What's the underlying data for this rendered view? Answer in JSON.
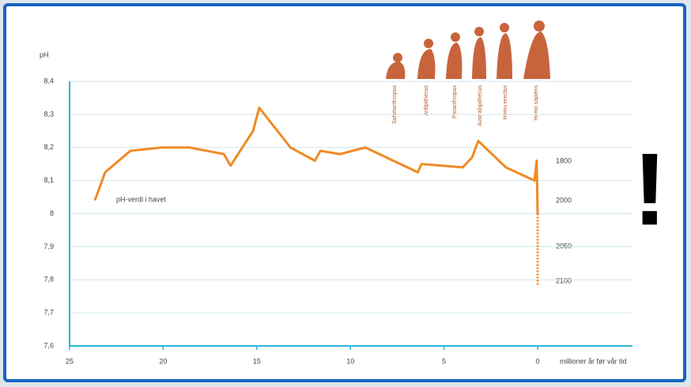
{
  "chart_data": {
    "type": "line",
    "y_label": "pH",
    "x_label": "millioner år før vår tid",
    "xlim": [
      25,
      0
    ],
    "ylim": [
      7.6,
      8.4
    ],
    "xticks": [
      25,
      20,
      15,
      10,
      5,
      0
    ],
    "yticks": [
      {
        "value": 7.6,
        "label": "7,6"
      },
      {
        "value": 7.7,
        "label": "7,7"
      },
      {
        "value": 7.8,
        "label": "7,8"
      },
      {
        "value": 7.9,
        "label": "7,9"
      },
      8,
      {
        "value": 8.1,
        "label": "8,1"
      },
      {
        "value": 8.2,
        "label": "8,2"
      },
      {
        "value": 8.3,
        "label": "8,3"
      },
      {
        "value": 8.4,
        "label": "8,4"
      }
    ],
    "grid": true,
    "series": [
      {
        "name": "pH-verdi i havet",
        "color": "#f08a24",
        "x": [
          23.65,
          23.1,
          21.75,
          20.06,
          18.6,
          16.76,
          16.4,
          15.2,
          14.87,
          13.2,
          11.9,
          11.6,
          10.56,
          9.2,
          6.4,
          6.2,
          4.0,
          3.5,
          3.17,
          1.7,
          0.17,
          0.05,
          0
        ],
        "values": [
          8.04,
          8.125,
          8.19,
          8.2,
          8.2,
          8.18,
          8.145,
          8.25,
          8.32,
          8.2,
          8.16,
          8.19,
          8.18,
          8.2,
          8.125,
          8.15,
          8.14,
          8.17,
          8.22,
          8.14,
          8.1,
          8.16,
          8.0
        ]
      },
      {
        "color": "#f08a24",
        "dashed": true,
        "x": [
          0,
          0
        ],
        "values": [
          8.0,
          7.78
        ]
      }
    ]
  },
  "annotations": {
    "year_labels": [
      "1800",
      "2000",
      "2050",
      "2100"
    ],
    "hominids": [
      "Sahelanthropus",
      "Ardipithecus",
      "Paranthropus",
      "Australopithecus",
      "Homo erectus",
      "Homo sapiens"
    ],
    "exclamation": "!"
  }
}
